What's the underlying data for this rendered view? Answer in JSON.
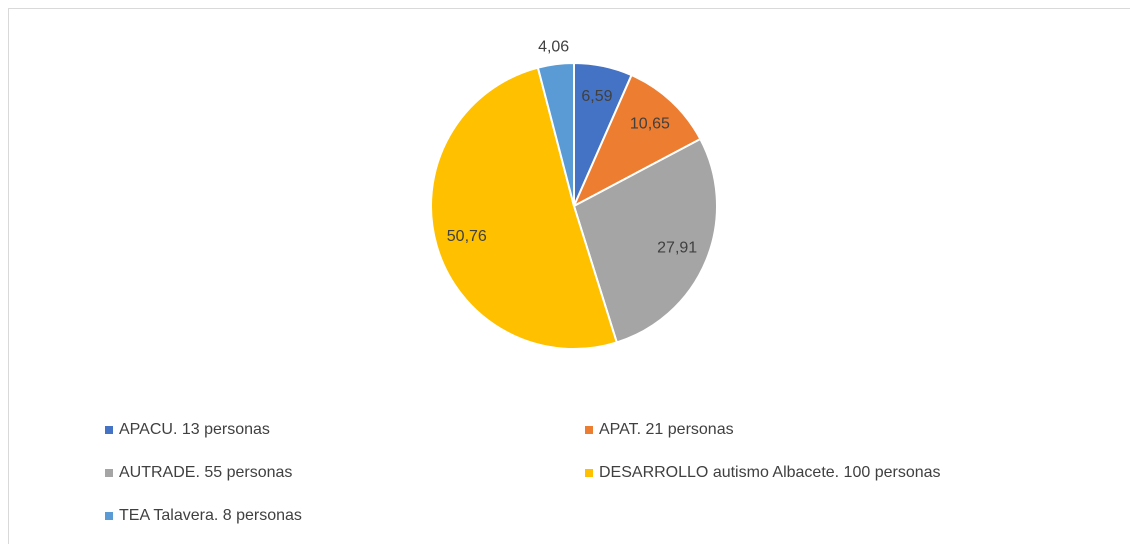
{
  "chart_data": {
    "type": "pie",
    "categories": [
      "APACU. 13 personas",
      "APAT. 21 personas",
      "AUTRADE. 55 personas",
      "DESARROLLO autismo Albacete. 100 personas",
      "TEA Talavera. 8 personas"
    ],
    "values": [
      6.59,
      10.65,
      27.91,
      50.76,
      4.06
    ],
    "value_labels": [
      "6,59",
      "10,65",
      "27,91",
      "50,76",
      "4,06"
    ],
    "colors": [
      "#4472c4",
      "#ed7d31",
      "#a5a5a5",
      "#ffc000",
      "#5b9bd5"
    ],
    "legend": "bottom"
  }
}
